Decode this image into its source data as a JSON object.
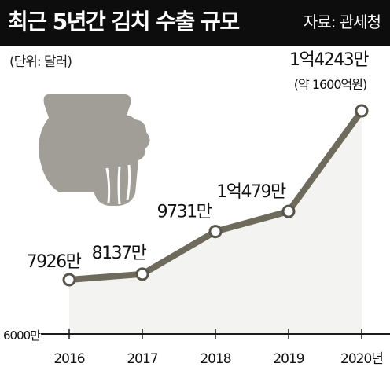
{
  "header": {
    "title": "최근 5년간 김치 수출 규모",
    "source": "자료: 관세청",
    "unit": "(단위: 달러)"
  },
  "colors": {
    "header_bg": "#0d0d0d",
    "line": "#6f6b5c",
    "line_dark": "#57544a",
    "area": "#f3f3f1",
    "illustration": "#a09e97",
    "text": "#111111"
  },
  "icons": [
    "kimchi-jar-icon",
    "cabbage-icon"
  ],
  "chart_data": {
    "type": "line",
    "title": "최근 5년간 김치 수출 규모",
    "xlabel": "",
    "ylabel": "",
    "unit": "(단위: 달러)",
    "y_axis_label": "6000만",
    "categories": [
      "2016",
      "2017",
      "2018",
      "2019",
      "2020년"
    ],
    "values": [
      79260000,
      81370000,
      97310000,
      104790000,
      142430000
    ],
    "value_labels": [
      "7926만",
      "8137만",
      "9731만",
      "1억479만",
      "1억4243만"
    ],
    "annotation": "(약 1600억원)",
    "ylim": [
      60000000,
      145000000
    ],
    "grid": false,
    "legend": "none"
  }
}
